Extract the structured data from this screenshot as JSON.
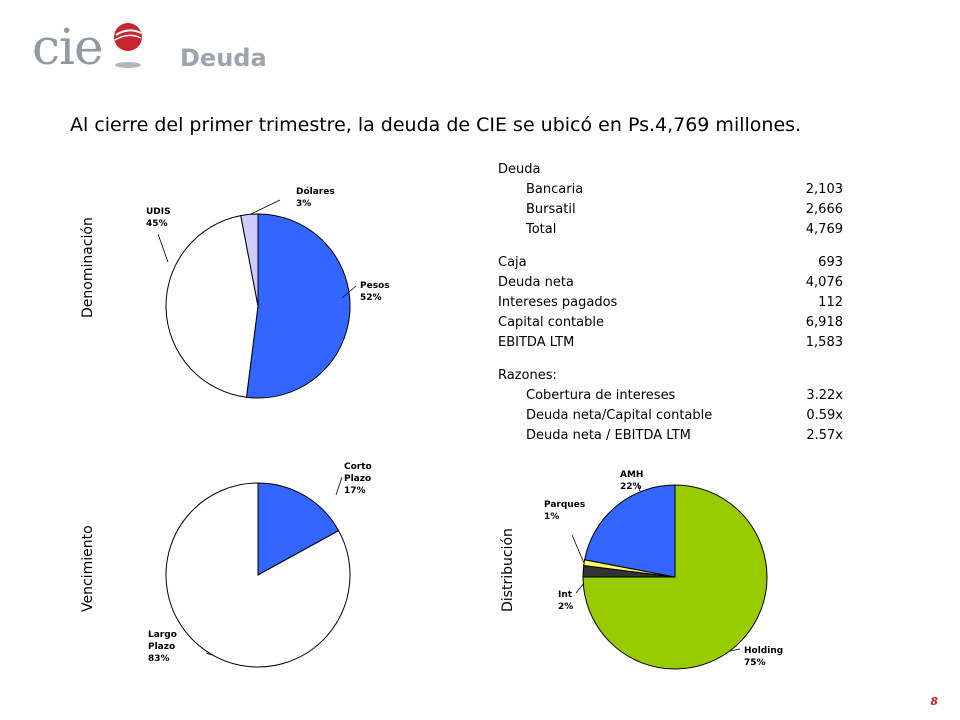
{
  "header": {
    "logo_text": "cie",
    "section_title": "Deuda",
    "logo_colors": {
      "text": "#8f9aa3",
      "ball": "#c8262e"
    }
  },
  "headline": "Al cierre del primer trimestre, la deuda de CIE se ubicó en Ps.4,769 millones.",
  "table": {
    "heading": "Deuda",
    "debt_rows": [
      {
        "label": "Bancaria",
        "value": "2,103"
      },
      {
        "label": "Bursatil",
        "value": "2,666"
      },
      {
        "label": "Total",
        "value": "4,769"
      }
    ],
    "main_rows": [
      {
        "label": "Caja",
        "value": "693"
      },
      {
        "label": "Deuda neta",
        "value": "4,076"
      },
      {
        "label": "Intereses pagados",
        "value": "112"
      },
      {
        "label": "Capital contable",
        "value": "6,918"
      },
      {
        "label": "EBITDA LTM",
        "value": "1,583"
      }
    ],
    "ratios_heading": "Razones:",
    "ratio_rows": [
      {
        "label": "Cobertura de intereses",
        "value": "3.22x"
      },
      {
        "label": "Deuda neta/Capital contable",
        "value": "0.59x"
      },
      {
        "label": "Deuda neta / EBITDA LTM",
        "value": "2.57x"
      }
    ]
  },
  "page_number": "8",
  "chart_data": [
    {
      "type": "pie",
      "title": "Denominación",
      "slices": [
        {
          "name": "Pesos",
          "value": 52,
          "label_line1": "Pesos",
          "label_line2": "52%",
          "color": "#3366ff"
        },
        {
          "name": "UDIS",
          "value": 45,
          "label_line1": "UDIS",
          "label_line2": "45%",
          "color": "#ffffff"
        },
        {
          "name": "Dólares",
          "value": 3,
          "label_line1": "Dólares",
          "label_line2": "3%",
          "color": "#ccccff"
        }
      ]
    },
    {
      "type": "pie",
      "title": "Vencimiento",
      "slices": [
        {
          "name": "Corto Plazo",
          "value": 17,
          "label_line1": "Corto",
          "label_line2": "Plazo",
          "label_line3": "17%",
          "color": "#3366ff"
        },
        {
          "name": "Largo Plazo",
          "value": 83,
          "label_line1": "Largo",
          "label_line2": "Plazo",
          "label_line3": "83%",
          "color": "#ffffff"
        }
      ]
    },
    {
      "type": "pie",
      "title": "Distribución",
      "slices": [
        {
          "name": "Holding",
          "value": 75,
          "label_line1": "Holding",
          "label_line2": "75%",
          "color": "#99cc00"
        },
        {
          "name": "Int",
          "value": 2,
          "label_line1": "Int",
          "label_line2": "2%",
          "color": "#333333"
        },
        {
          "name": "Parques",
          "value": 1,
          "label_line1": "Parques",
          "label_line2": "1%",
          "color": "#ffff66"
        },
        {
          "name": "AMH",
          "value": 22,
          "label_line1": "AMH",
          "label_line2": "22%",
          "color": "#3366ff"
        }
      ]
    }
  ]
}
